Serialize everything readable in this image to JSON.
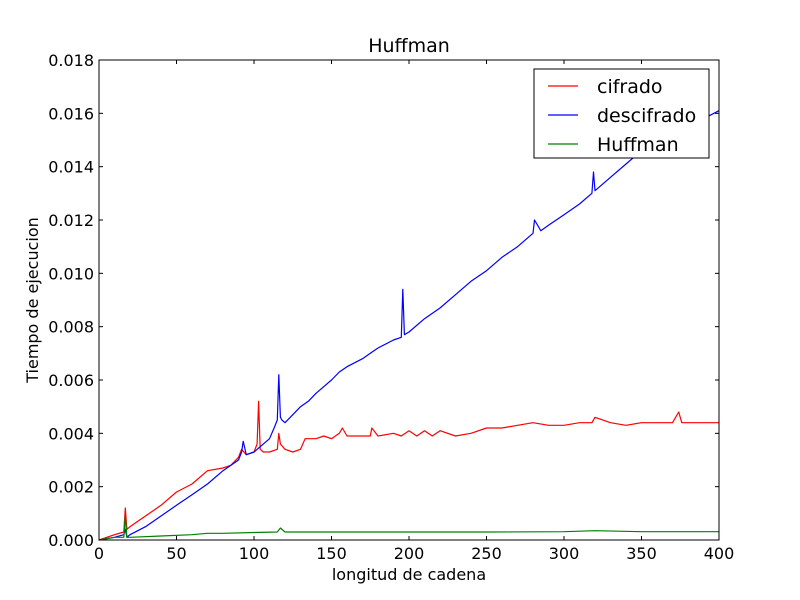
{
  "chart_data": {
    "type": "line",
    "title": "Huffman",
    "xlabel": "longitud de cadena",
    "ylabel": "Tiempo de ejecucion",
    "xlim": [
      0,
      400
    ],
    "ylim": [
      0,
      0.018
    ],
    "xticks": [
      0,
      50,
      100,
      150,
      200,
      250,
      300,
      350,
      400
    ],
    "xtick_labels": [
      "0",
      "50",
      "100",
      "150",
      "200",
      "250",
      "300",
      "350",
      "400"
    ],
    "yticks": [
      0,
      0.002,
      0.004,
      0.006,
      0.008,
      0.01,
      0.012,
      0.014,
      0.016,
      0.018
    ],
    "ytick_labels": [
      "0.000",
      "0.002",
      "0.004",
      "0.006",
      "0.008",
      "0.010",
      "0.012",
      "0.014",
      "0.016",
      "0.018"
    ],
    "grid": false,
    "legend": "top-right",
    "series": [
      {
        "name": "cifrado",
        "color": "#ff0000",
        "x": [
          0,
          10,
          16,
          17,
          18,
          20,
          25,
          30,
          40,
          50,
          60,
          70,
          80,
          85,
          90,
          92,
          95,
          100,
          102,
          103,
          104,
          106,
          110,
          115,
          116,
          117,
          120,
          125,
          130,
          133,
          135,
          140,
          145,
          150,
          155,
          157,
          160,
          170,
          175,
          176,
          180,
          190,
          195,
          200,
          205,
          210,
          215,
          220,
          230,
          240,
          250,
          260,
          270,
          280,
          290,
          300,
          310,
          318,
          320,
          330,
          340,
          350,
          360,
          370,
          374,
          376,
          380,
          390,
          400
        ],
        "y": [
          0.0,
          0.0002,
          0.0003,
          0.0012,
          0.0004,
          0.0005,
          0.0007,
          0.0009,
          0.0013,
          0.0018,
          0.0021,
          0.0026,
          0.0027,
          0.0028,
          0.0031,
          0.0034,
          0.0032,
          0.0033,
          0.0036,
          0.0052,
          0.0034,
          0.0033,
          0.0033,
          0.0034,
          0.004,
          0.0036,
          0.0034,
          0.0033,
          0.0034,
          0.0038,
          0.0038,
          0.0038,
          0.0039,
          0.0038,
          0.004,
          0.0042,
          0.0039,
          0.0039,
          0.0039,
          0.0042,
          0.0039,
          0.004,
          0.0039,
          0.0041,
          0.0039,
          0.0041,
          0.0039,
          0.0041,
          0.0039,
          0.004,
          0.0042,
          0.0042,
          0.0043,
          0.0044,
          0.0043,
          0.0043,
          0.0044,
          0.0044,
          0.0046,
          0.0044,
          0.0043,
          0.0044,
          0.0044,
          0.0044,
          0.0048,
          0.0044,
          0.0044,
          0.0044,
          0.0044
        ]
      },
      {
        "name": "descifrado",
        "color": "#0000ff",
        "x": [
          0,
          10,
          16,
          17,
          18,
          20,
          30,
          40,
          50,
          60,
          70,
          80,
          90,
          92,
          93,
          95,
          100,
          110,
          113,
          115,
          116,
          117,
          118,
          120,
          125,
          130,
          135,
          140,
          150,
          155,
          160,
          170,
          175,
          180,
          190,
          195,
          196,
          197,
          200,
          210,
          220,
          230,
          240,
          250,
          260,
          270,
          280,
          281,
          285,
          290,
          300,
          310,
          318,
          319,
          320,
          330,
          340,
          350,
          360,
          370,
          380,
          390,
          400
        ],
        "y": [
          0.0,
          0.0001,
          0.0002,
          0.0004,
          0.0001,
          0.0002,
          0.0005,
          0.0009,
          0.0013,
          0.0017,
          0.0021,
          0.0026,
          0.003,
          0.0033,
          0.0037,
          0.0032,
          0.0033,
          0.0038,
          0.0042,
          0.0045,
          0.0062,
          0.0046,
          0.0045,
          0.0044,
          0.0047,
          0.005,
          0.0052,
          0.0055,
          0.006,
          0.0063,
          0.0065,
          0.0068,
          0.007,
          0.0072,
          0.0075,
          0.0076,
          0.0094,
          0.0077,
          0.0078,
          0.0083,
          0.0087,
          0.0092,
          0.0097,
          0.0101,
          0.0106,
          0.011,
          0.0115,
          0.012,
          0.0116,
          0.0118,
          0.0122,
          0.0126,
          0.013,
          0.0138,
          0.0131,
          0.0136,
          0.0141,
          0.0146,
          0.0149,
          0.0152,
          0.0155,
          0.0158,
          0.0161
        ]
      },
      {
        "name": "Huffman",
        "color": "#008000",
        "x": [
          0,
          10,
          16,
          17,
          18,
          20,
          40,
          60,
          70,
          80,
          100,
          115,
          117,
          120,
          150,
          200,
          250,
          300,
          320,
          350,
          400
        ],
        "y": [
          0.0,
          0.0001,
          0.0001,
          0.0009,
          0.0001,
          0.0001,
          0.00015,
          0.0002,
          0.00025,
          0.00025,
          0.00028,
          0.0003,
          0.00045,
          0.0003,
          0.0003,
          0.0003,
          0.0003,
          0.00031,
          0.00035,
          0.00031,
          0.00031
        ]
      }
    ]
  }
}
